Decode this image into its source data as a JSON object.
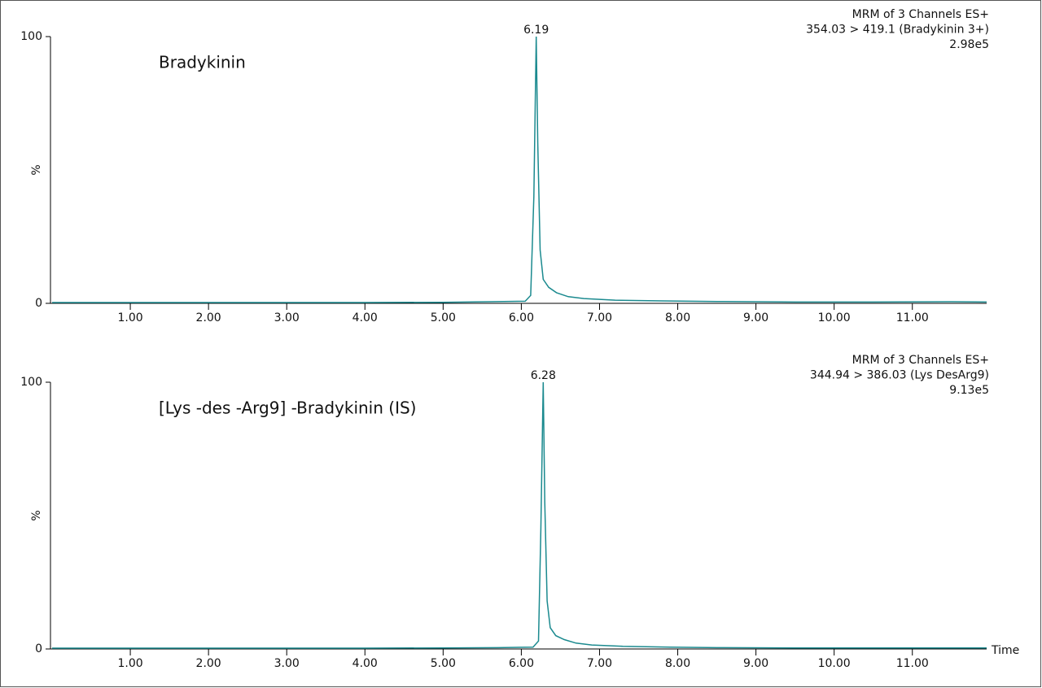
{
  "chart_data": [
    {
      "type": "line",
      "title": "Bradykinin",
      "annotations": [
        "MRM of 3 Channels ES+",
        "354.03 > 419.1 (Bradykinin 3+)",
        "2.98e5"
      ],
      "ylabel": "%",
      "peak_x": 6.19,
      "color": "#1b8a8f",
      "x": [
        0,
        1,
        2,
        3,
        4,
        5,
        5.6,
        6.05,
        6.12,
        6.16,
        6.19,
        6.21,
        6.24,
        6.28,
        6.35,
        6.45,
        6.6,
        6.8,
        7.2,
        7.8,
        8.5,
        9.5,
        10.5,
        11.5,
        11.95
      ],
      "values": [
        0.3,
        0.3,
        0.3,
        0.3,
        0.3,
        0.4,
        0.6,
        0.8,
        3,
        40,
        100,
        60,
        20,
        9,
        6,
        4,
        2.5,
        1.8,
        1.2,
        0.9,
        0.7,
        0.5,
        0.5,
        0.6,
        0.5
      ],
      "xlim": [
        0,
        11.95
      ],
      "ylim": [
        0,
        100
      ],
      "yticks": [
        0,
        100
      ],
      "xticks": [
        {
          "value": 1,
          "label": "1.00"
        },
        {
          "value": 2,
          "label": "2.00"
        },
        {
          "value": 3,
          "label": "3.00"
        },
        {
          "value": 4,
          "label": "4.00"
        },
        {
          "value": 5,
          "label": "5.00"
        },
        {
          "value": 6,
          "label": "6.00"
        },
        {
          "value": 7,
          "label": "7.00"
        },
        {
          "value": 8,
          "label": "8.00"
        },
        {
          "value": 9,
          "label": "9.00"
        },
        {
          "value": 10,
          "label": "10.00"
        },
        {
          "value": 11,
          "label": "11.00"
        }
      ]
    },
    {
      "type": "line",
      "title": "[Lys -des -Arg9] -Bradykinin (IS)",
      "annotations": [
        "MRM of 3 Channels ES+",
        "344.94 > 386.03 (Lys DesArg9)",
        "9.13e5"
      ],
      "ylabel": "%",
      "xlabel": "Time",
      "peak_x": 6.28,
      "color": "#1b8a8f",
      "x": [
        0,
        1,
        2,
        3,
        4,
        5,
        5.7,
        6.15,
        6.22,
        6.25,
        6.28,
        6.3,
        6.33,
        6.37,
        6.44,
        6.55,
        6.7,
        6.9,
        7.3,
        7.9,
        8.5,
        9.5,
        10.5,
        11.5,
        11.95
      ],
      "values": [
        0.3,
        0.3,
        0.3,
        0.3,
        0.3,
        0.4,
        0.5,
        0.7,
        3,
        45,
        100,
        55,
        18,
        8,
        5,
        3.5,
        2.2,
        1.5,
        1,
        0.7,
        0.5,
        0.4,
        0.4,
        0.4,
        0.4
      ],
      "xlim": [
        0,
        11.95
      ],
      "ylim": [
        0,
        100
      ],
      "yticks": [
        0,
        100
      ],
      "xticks": [
        {
          "value": 1,
          "label": "1.00"
        },
        {
          "value": 2,
          "label": "2.00"
        },
        {
          "value": 3,
          "label": "3.00"
        },
        {
          "value": 4,
          "label": "4.00"
        },
        {
          "value": 5,
          "label": "5.00"
        },
        {
          "value": 6,
          "label": "6.00"
        },
        {
          "value": 7,
          "label": "7.00"
        },
        {
          "value": 8,
          "label": "8.00"
        },
        {
          "value": 9,
          "label": "9.00"
        },
        {
          "value": 10,
          "label": "10.00"
        },
        {
          "value": 11,
          "label": "11.00"
        }
      ]
    }
  ]
}
